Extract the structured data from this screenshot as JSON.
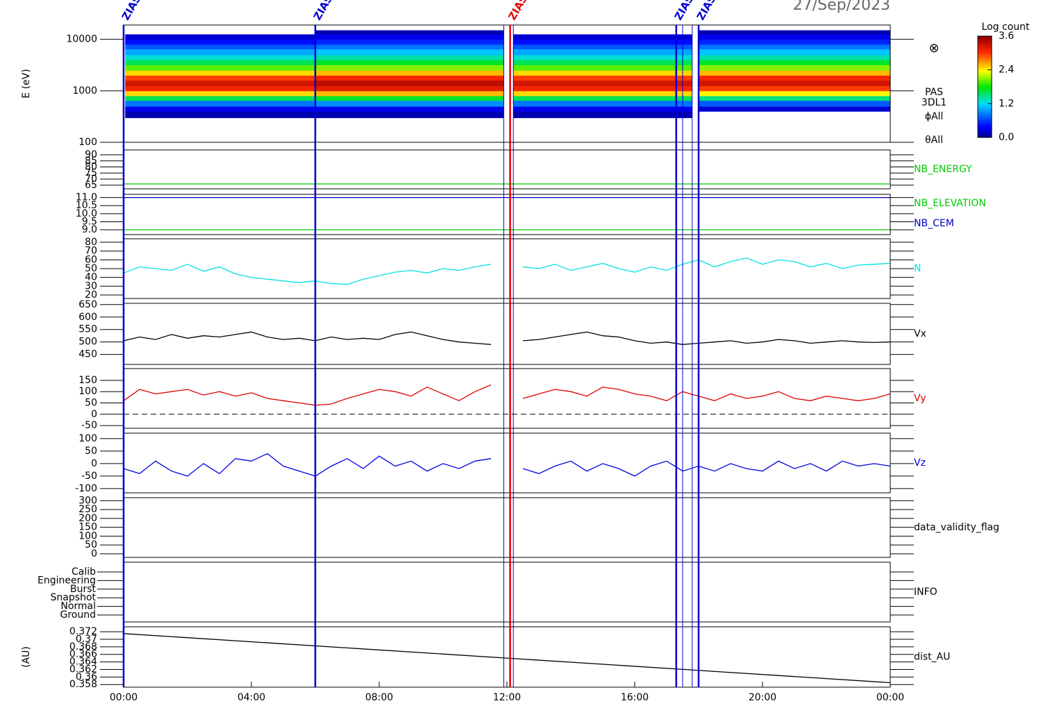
{
  "time_axis": {
    "xlim": [
      0,
      24
    ],
    "xticks": [
      {
        "value": 0,
        "label": "00:00"
      },
      {
        "value": 4,
        "label": "04:00"
      },
      {
        "value": 8,
        "label": "08:00"
      },
      {
        "value": 12,
        "label": "12:00"
      },
      {
        "value": 16,
        "label": "16:00"
      },
      {
        "value": 20,
        "label": "20:00"
      },
      {
        "value": 24,
        "label": "00:00"
      }
    ],
    "date": "27/Sep/2023"
  },
  "events": [
    {
      "x": 0,
      "color": "#0000d0",
      "label": "ZIAS"
    },
    {
      "x": 6,
      "color": "#0000d0",
      "label": "ZIAS"
    },
    {
      "x": 11.9,
      "color": "#0000d0"
    },
    {
      "x": 12.1,
      "color": "#e00000",
      "label": "ZIAS"
    },
    {
      "x": 12.2,
      "color": "#0000d0"
    },
    {
      "x": 17.3,
      "color": "#0000d0",
      "label": "ZIAS"
    },
    {
      "x": 17.5,
      "color": "#0000d0"
    },
    {
      "x": 17.8,
      "color": "#0000d0"
    },
    {
      "x": 18,
      "color": "#0000d0",
      "label": "ZIAS"
    }
  ],
  "chart_data": [
    {
      "type": "heatmap",
      "ylabel": "E (eV)",
      "ylog": true,
      "ylim": [
        100,
        19000
      ],
      "yticks": [
        100,
        1000,
        10000
      ],
      "labels": [
        "PAS",
        "3DL1",
        "ϕAll",
        "θAll"
      ],
      "symbol": "⊗",
      "colorbar": {
        "title": "Log count",
        "zlim": [
          0,
          3.6
        ],
        "ticks": [
          {
            "value": 0,
            "label": "0.0"
          },
          1.2,
          2.4,
          3.6
        ]
      },
      "y_edges": [
        300,
        400,
        500,
        650,
        800,
        1000,
        1250,
        1600,
        2000,
        2500,
        3200,
        4000,
        5000,
        6500,
        8000,
        10000,
        12500,
        15000
      ],
      "segments": [
        {
          "start": 0.05,
          "end": 6,
          "values": [
            0.1,
            0.3,
            0.8,
            1.6,
            2.5,
            3.1,
            3.3,
            3.0,
            2.5,
            2.0,
            1.6,
            1.3,
            1.0,
            0.7,
            0.4,
            0.2,
            null
          ]
        },
        {
          "start": 6,
          "end": 11.9,
          "values": [
            0.1,
            0.3,
            0.9,
            1.7,
            2.6,
            3.2,
            3.4,
            3.1,
            2.6,
            2.1,
            1.7,
            1.4,
            1.1,
            0.8,
            0.5,
            0.3,
            0.1
          ]
        },
        {
          "start": 12.2,
          "end": 17.8,
          "values": [
            0.1,
            0.3,
            0.8,
            1.6,
            2.5,
            3.1,
            3.3,
            3.0,
            2.5,
            2.0,
            1.6,
            1.3,
            1.0,
            0.7,
            0.4,
            0.2,
            null
          ]
        },
        {
          "start": 18,
          "end": 24,
          "values": [
            null,
            0.2,
            0.7,
            1.5,
            2.4,
            3.0,
            3.3,
            3.1,
            2.6,
            2.1,
            1.7,
            1.4,
            1.1,
            0.8,
            0.5,
            0.3,
            0.1
          ]
        }
      ]
    },
    {
      "type": "line",
      "ylim": [
        62,
        94
      ],
      "yticks": [
        65,
        70,
        75,
        80,
        85,
        90
      ],
      "series": [
        {
          "name": "NB_ENERGY",
          "color": "#00cc00",
          "x": [
            0,
            24
          ],
          "values": [
            66,
            66
          ]
        }
      ]
    },
    {
      "type": "line",
      "ylim": [
        8.7,
        11.2
      ],
      "yticks": [
        {
          "value": 9,
          "label": "9.0"
        },
        9.5,
        {
          "value": 10,
          "label": "10.0"
        },
        10.5,
        {
          "value": 11,
          "label": "11.0"
        }
      ],
      "series": [
        {
          "name": "NB_ELEVATION",
          "color": "#00cc00",
          "x": [
            0,
            24
          ],
          "values": [
            9,
            9
          ]
        },
        {
          "name": "NB_CEM",
          "color": "#0000c0",
          "x": [
            0,
            24
          ],
          "values": [
            11,
            11
          ]
        }
      ]
    },
    {
      "type": "line",
      "ylim": [
        16,
        84
      ],
      "yticks": [
        20,
        30,
        40,
        50,
        60,
        70,
        80
      ],
      "series": [
        {
          "name": "N",
          "color": "#00e0e0",
          "x": [
            0,
            0.5,
            1,
            1.5,
            2,
            2.5,
            3,
            3.5,
            4,
            4.5,
            5,
            5.5,
            6,
            6.5,
            7,
            7.5,
            8,
            8.5,
            9,
            9.5,
            10,
            10.5,
            11,
            11.5,
            12,
            12.5,
            13,
            13.5,
            14,
            14.5,
            15,
            15.5,
            16,
            16.5,
            17,
            17.5,
            18,
            18.5,
            19,
            19.5,
            20,
            20.5,
            21,
            21.5,
            22,
            22.5,
            23,
            23.5,
            24
          ],
          "values": [
            45,
            52,
            50,
            48,
            55,
            47,
            52,
            44,
            40,
            38,
            36,
            34,
            36,
            33,
            32,
            38,
            42,
            46,
            48,
            45,
            50,
            48,
            52,
            55,
            null,
            52,
            50,
            55,
            48,
            52,
            56,
            50,
            46,
            52,
            48,
            55,
            60,
            52,
            58,
            62,
            55,
            60,
            58,
            52,
            56,
            50,
            54,
            55,
            56
          ]
        }
      ]
    },
    {
      "type": "line",
      "ylim": [
        410,
        655
      ],
      "yticks": [
        450,
        500,
        550,
        600,
        650
      ],
      "series": [
        {
          "name": "Vx",
          "color": "#000000",
          "x": [
            0,
            0.5,
            1,
            1.5,
            2,
            2.5,
            3,
            3.5,
            4,
            4.5,
            5,
            5.5,
            6,
            6.5,
            7,
            7.5,
            8,
            8.5,
            9,
            9.5,
            10,
            10.5,
            11,
            11.5,
            12,
            12.5,
            13,
            13.5,
            14,
            14.5,
            15,
            15.5,
            16,
            16.5,
            17,
            17.5,
            18,
            18.5,
            19,
            19.5,
            20,
            20.5,
            21,
            21.5,
            22,
            22.5,
            23,
            23.5,
            24
          ],
          "values": [
            505,
            520,
            510,
            530,
            515,
            525,
            520,
            530,
            540,
            520,
            510,
            515,
            505,
            520,
            510,
            515,
            510,
            530,
            540,
            525,
            510,
            500,
            495,
            490,
            null,
            505,
            510,
            520,
            530,
            540,
            525,
            520,
            505,
            495,
            500,
            490,
            495,
            500,
            505,
            495,
            500,
            510,
            505,
            495,
            500,
            505,
            500,
            498,
            500
          ]
        }
      ]
    },
    {
      "type": "line",
      "ylim": [
        -62,
        202
      ],
      "yticks": [
        -50,
        0,
        50,
        100,
        150
      ],
      "hline": 0,
      "series": [
        {
          "name": "Vy",
          "color": "#e00000",
          "x": [
            0,
            0.5,
            1,
            1.5,
            2,
            2.5,
            3,
            3.5,
            4,
            4.5,
            5,
            5.5,
            6,
            6.5,
            7,
            7.5,
            8,
            8.5,
            9,
            9.5,
            10,
            10.5,
            11,
            11.5,
            12,
            12.5,
            13,
            13.5,
            14,
            14.5,
            15,
            15.5,
            16,
            16.5,
            17,
            17.5,
            18,
            18.5,
            19,
            19.5,
            20,
            20.5,
            21,
            21.5,
            22,
            22.5,
            23,
            23.5,
            24
          ],
          "values": [
            60,
            110,
            90,
            100,
            110,
            85,
            100,
            80,
            95,
            70,
            60,
            50,
            40,
            45,
            70,
            90,
            110,
            100,
            80,
            120,
            90,
            60,
            100,
            130,
            null,
            70,
            90,
            110,
            100,
            80,
            120,
            110,
            90,
            80,
            60,
            100,
            80,
            60,
            90,
            70,
            80,
            100,
            70,
            60,
            80,
            70,
            60,
            70,
            90
          ]
        }
      ]
    },
    {
      "type": "line",
      "ylim": [
        -117,
        122
      ],
      "yticks": [
        -100,
        -50,
        0,
        50,
        100
      ],
      "series": [
        {
          "name": "Vz",
          "color": "#0000e0",
          "x": [
            0,
            0.5,
            1,
            1.5,
            2,
            2.5,
            3,
            3.5,
            4,
            4.5,
            5,
            5.5,
            6,
            6.5,
            7,
            7.5,
            8,
            8.5,
            9,
            9.5,
            10,
            10.5,
            11,
            11.5,
            12,
            12.5,
            13,
            13.5,
            14,
            14.5,
            15,
            15.5,
            16,
            16.5,
            17,
            17.5,
            18,
            18.5,
            19,
            19.5,
            20,
            20.5,
            21,
            21.5,
            22,
            22.5,
            23,
            23.5,
            24
          ],
          "values": [
            -20,
            -40,
            10,
            -30,
            -50,
            0,
            -40,
            20,
            10,
            40,
            -10,
            -30,
            -50,
            -10,
            20,
            -20,
            30,
            -10,
            10,
            -30,
            0,
            -20,
            10,
            20,
            null,
            -20,
            -40,
            -10,
            10,
            -30,
            0,
            -20,
            -50,
            -10,
            10,
            -30,
            -10,
            -30,
            0,
            -20,
            -30,
            10,
            -20,
            0,
            -30,
            10,
            -10,
            0,
            -10
          ]
        }
      ]
    },
    {
      "type": "empty",
      "label": "data_validity_flag",
      "ylim": [
        -20,
        317
      ],
      "yticks": [
        0,
        50,
        100,
        150,
        200,
        250,
        300
      ]
    },
    {
      "type": "category",
      "label": "INFO",
      "categories": [
        "Calib",
        "Engineering",
        "Burst",
        "Snapshot",
        "Normal",
        "Ground"
      ]
    },
    {
      "type": "line",
      "ylabel": "(AU)",
      "ylim": [
        0.3573,
        0.3733
      ],
      "yticks": [
        0.358,
        0.36,
        0.362,
        0.364,
        0.366,
        0.368,
        0.37,
        0.372
      ],
      "series": [
        {
          "name": "dist_AU",
          "color": "#000000",
          "x": [
            0,
            24
          ],
          "values": [
            0.3715,
            0.3585
          ]
        }
      ]
    }
  ]
}
